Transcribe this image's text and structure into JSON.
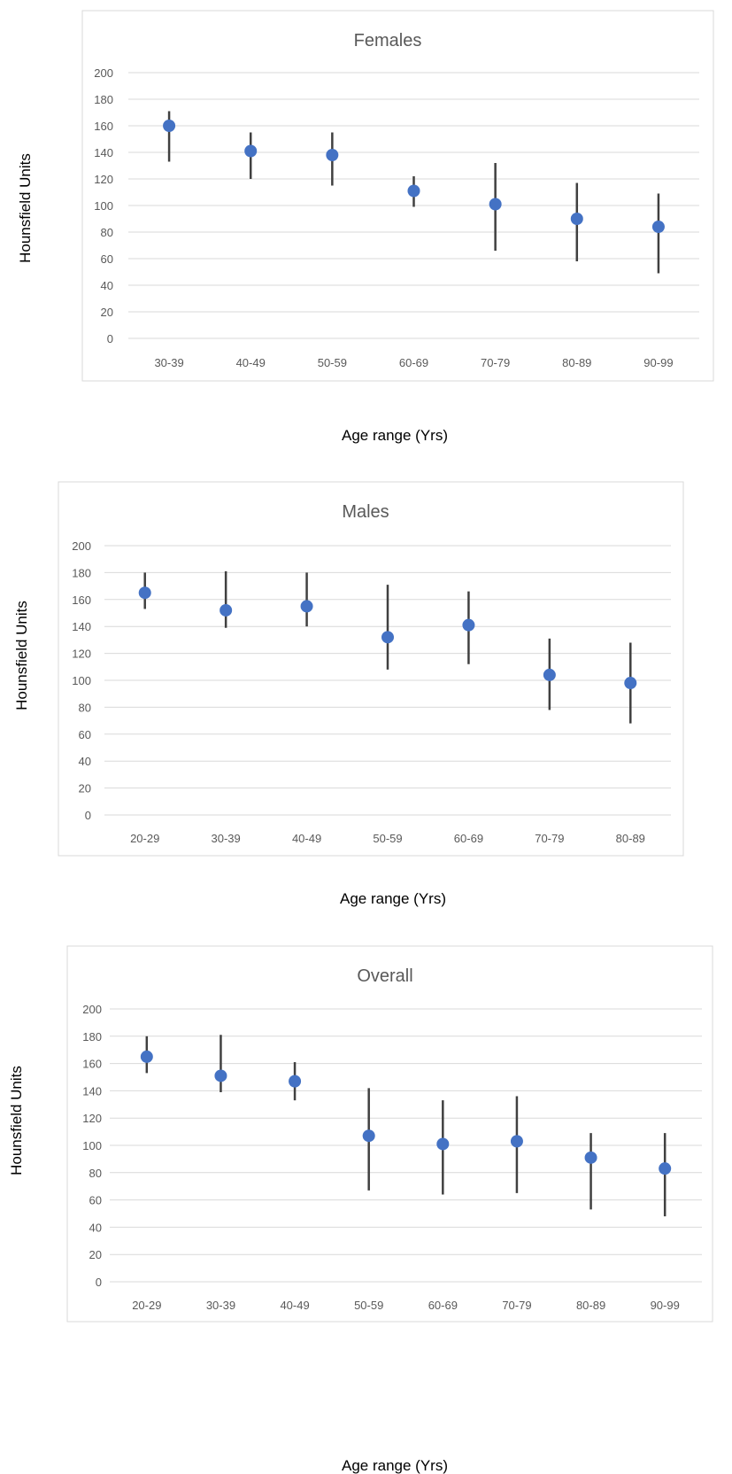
{
  "chart_data": [
    {
      "type": "scatter",
      "title": "Females",
      "xlabel": "Age range (Yrs)",
      "ylabel": "Hounsfield Units",
      "ylim": [
        0,
        200
      ],
      "yticks": [
        "0",
        "20",
        "40",
        "60",
        "80",
        "100",
        "120",
        "140",
        "160",
        "180",
        "200"
      ],
      "grid": true,
      "categories": [
        "30-39",
        "40-49",
        "50-59",
        "60-69",
        "70-79",
        "80-89",
        "90-99"
      ],
      "values": [
        160,
        141,
        138,
        111,
        101,
        90,
        84
      ],
      "error_low": [
        133,
        120,
        115,
        99,
        66,
        58,
        49
      ],
      "error_high": [
        171,
        155,
        155,
        122,
        132,
        117,
        109
      ]
    },
    {
      "type": "scatter",
      "title": "Males",
      "xlabel": "Age range (Yrs)",
      "ylabel": "Hounsfield Units",
      "ylim": [
        0,
        200
      ],
      "yticks": [
        "0",
        "20",
        "40",
        "60",
        "80",
        "100",
        "120",
        "140",
        "160",
        "180",
        "200"
      ],
      "grid": true,
      "categories": [
        "20-29",
        "30-39",
        "40-49",
        "50-59",
        "60-69",
        "70-79",
        "80-89"
      ],
      "values": [
        165,
        152,
        155,
        132,
        141,
        104,
        98
      ],
      "error_low": [
        153,
        139,
        140,
        108,
        112,
        78,
        68
      ],
      "error_high": [
        180,
        181,
        180,
        171,
        166,
        131,
        128
      ]
    },
    {
      "type": "scatter",
      "title": "Overall",
      "xlabel": "Age range (Yrs)",
      "ylabel": "Hounsfield Units",
      "ylim": [
        0,
        200
      ],
      "yticks": [
        "0",
        "20",
        "40",
        "60",
        "80",
        "100",
        "120",
        "140",
        "160",
        "180",
        "200"
      ],
      "grid": true,
      "categories": [
        "20-29",
        "30-39",
        "40-49",
        "50-59",
        "60-69",
        "70-79",
        "80-89",
        "90-99"
      ],
      "values": [
        165,
        151,
        147,
        107,
        101,
        103,
        91,
        83
      ],
      "error_low": [
        153,
        139,
        133,
        67,
        64,
        65,
        53,
        48
      ],
      "error_high": [
        180,
        181,
        161,
        142,
        133,
        136,
        109,
        109
      ]
    }
  ],
  "colors": {
    "marker": "#4472C4",
    "errorbar": "#404040",
    "grid": "#D9D9D9",
    "frame": "#D9D9D9",
    "text": "#595959"
  }
}
